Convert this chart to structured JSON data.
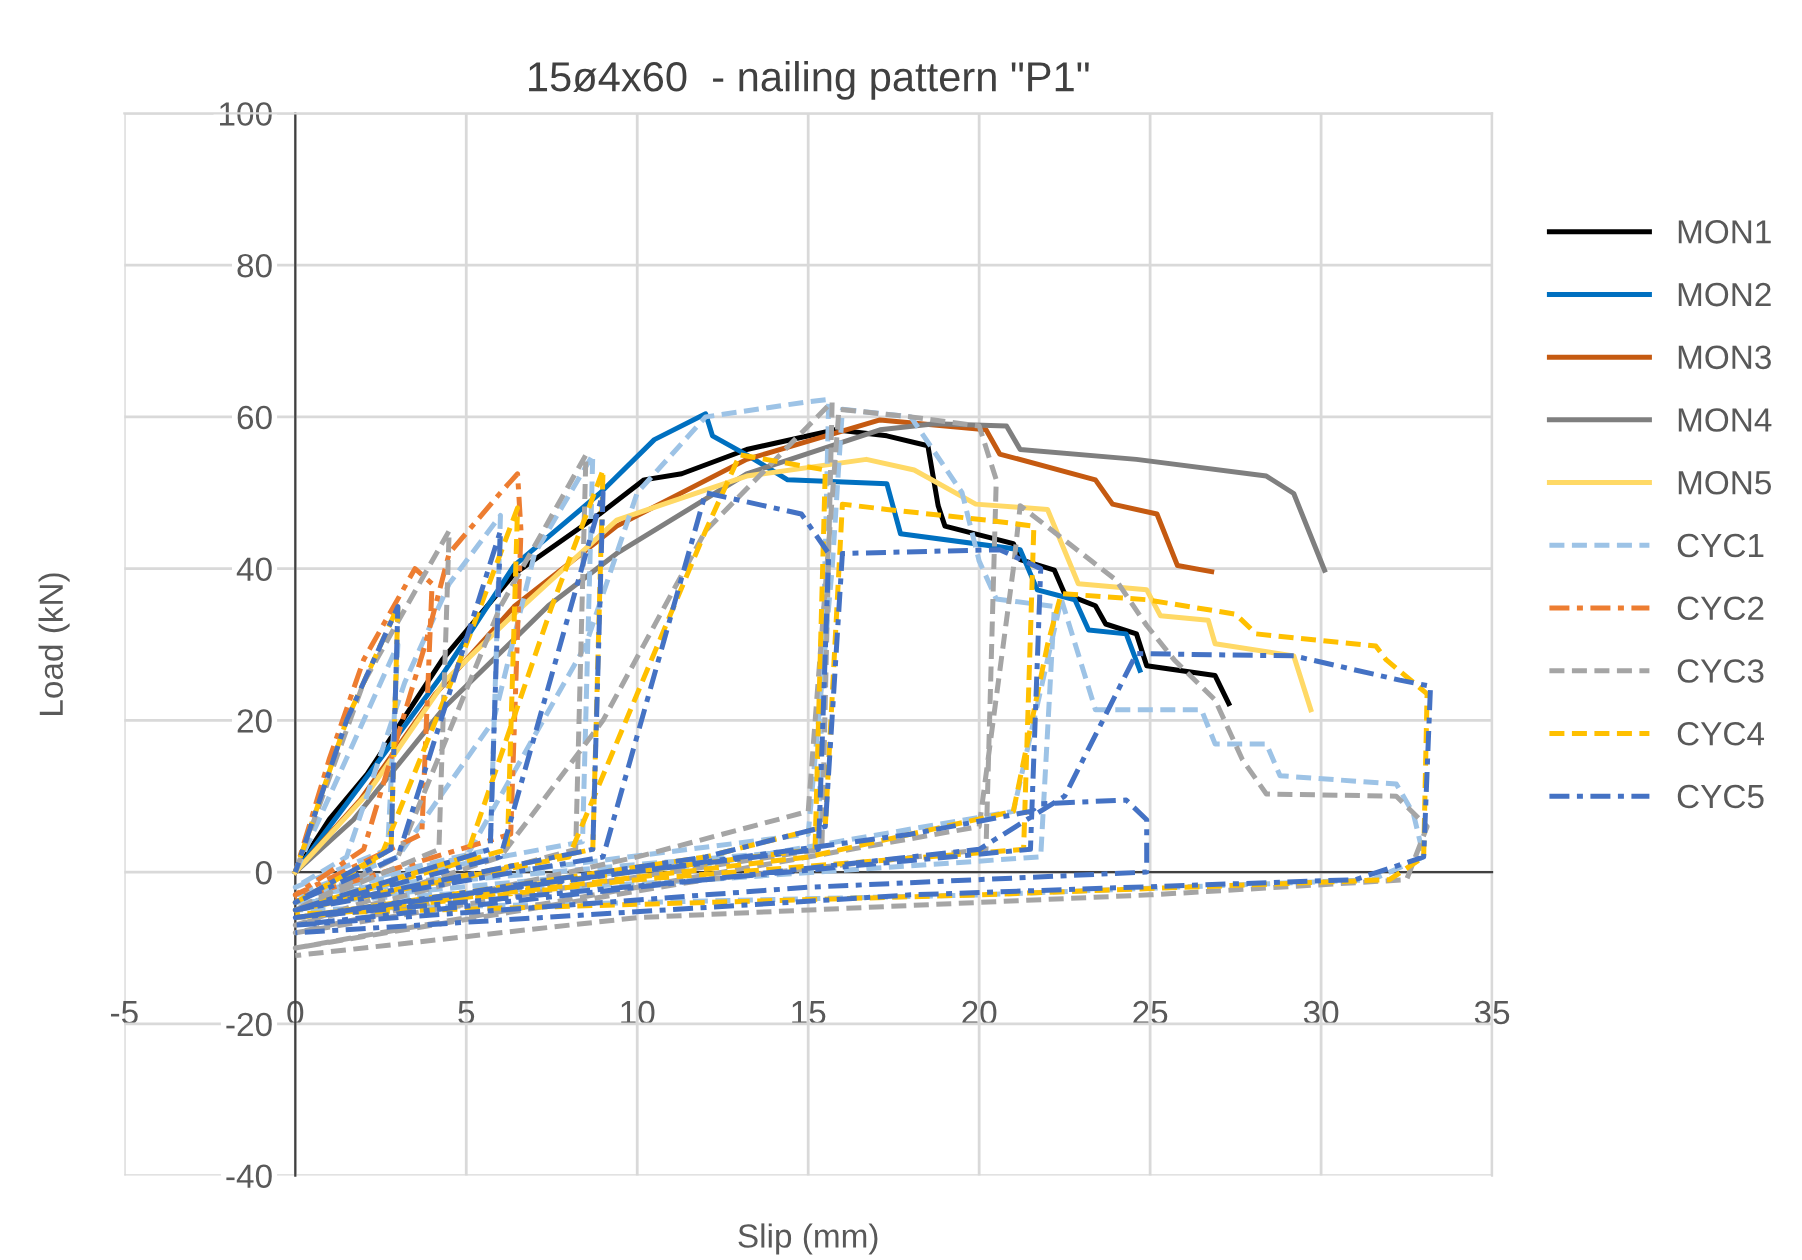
{
  "chart_data": {
    "type": "line",
    "title": "15ø4x60  - nailing pattern \"P1\"",
    "xlabel": "Slip (mm)",
    "ylabel": "Load (kN)",
    "xlim": [
      -5,
      35
    ],
    "xticks": [
      -5,
      0,
      5,
      10,
      15,
      20,
      25,
      30,
      35
    ],
    "ylim": [
      -40,
      100
    ],
    "yticks": [
      -40,
      -20,
      0,
      20,
      40,
      60,
      80,
      100
    ],
    "grid": true,
    "legend": "right",
    "marker": "none",
    "series": [
      {
        "name": "MON1",
        "color": "#000000",
        "line_style": "solid",
        "x": [
          0,
          1,
          2.1,
          4.3,
          6.4,
          8.9,
          10.2,
          11.3,
          13.2,
          15.8,
          17.3,
          18.5,
          18.8,
          19,
          21,
          21.2,
          22.2,
          22.5,
          23.4,
          23.7,
          24.6,
          24.9,
          26.9,
          27.3
        ],
        "values": [
          0,
          7,
          12.9,
          28,
          39.3,
          47.2,
          51.7,
          52.5,
          55.7,
          58.3,
          57.5,
          56.2,
          48.3,
          45.6,
          43.3,
          41.2,
          39.8,
          36.7,
          35.1,
          32.7,
          31.4,
          27.2,
          25.9,
          22.2
        ]
      },
      {
        "name": "MON2",
        "color": "#0070c0",
        "line_style": "solid",
        "x": [
          0,
          1,
          2.5,
          4.3,
          6.4,
          8.9,
          10.5,
          12,
          12.2,
          13.2,
          14.4,
          17.3,
          17.7,
          21.2,
          21.7,
          22.8,
          23.2,
          24.3,
          24.7
        ],
        "values": [
          0,
          6,
          15,
          26,
          40.4,
          49.9,
          57,
          60.4,
          57.5,
          55,
          51.7,
          51.2,
          44.6,
          42.5,
          37.2,
          35.9,
          31.9,
          31.4,
          26.6
        ]
      },
      {
        "name": "MON3",
        "color": "#c55a11",
        "line_style": "solid",
        "x": [
          0,
          1.9,
          4.1,
          6.4,
          9.4,
          13.2,
          17.1,
          20.2,
          20.6,
          23.4,
          23.9,
          25.2,
          25.8,
          26.8
        ],
        "values": [
          0,
          9.5,
          23.5,
          35,
          45.6,
          54.4,
          59.6,
          58.3,
          55.1,
          51.7,
          48.5,
          47.2,
          40.4,
          39.6
        ]
      },
      {
        "name": "MON4",
        "color": "#7f7f7f",
        "line_style": "solid",
        "x": [
          0,
          1.7,
          4.4,
          7.4,
          9.4,
          13.2,
          17.1,
          18.7,
          20.8,
          21.2,
          24.6,
          28.4,
          29.2,
          30.1
        ],
        "values": [
          0,
          6.9,
          21.9,
          35.1,
          42,
          52.5,
          58.3,
          59.1,
          58.8,
          55.7,
          54.4,
          52.2,
          49.9,
          39.8
        ]
      },
      {
        "name": "MON5",
        "color": "#ffd966",
        "line_style": "solid",
        "x": [
          0,
          2.1,
          4.4,
          6.4,
          9.4,
          13.2,
          16.7,
          18.1,
          19.9,
          22,
          22.9,
          24.9,
          25.3,
          26.7,
          26.9,
          29.2,
          29.7
        ],
        "values": [
          0,
          10.3,
          25.3,
          34,
          46.4,
          52.2,
          54.4,
          53,
          48.5,
          47.8,
          38,
          37.2,
          33.8,
          33.2,
          30.1,
          28.5,
          21.4
        ]
      },
      {
        "name": "CYC1",
        "color": "#9dc3e6",
        "line_style": "dashed",
        "x": [
          0,
          1.5,
          3,
          2.7,
          0,
          1.5,
          3.2,
          4.5,
          6,
          5.7,
          0,
          3,
          5.8,
          7,
          8.7,
          8.4,
          0,
          5,
          8.5,
          10,
          12,
          15,
          15.6,
          15.3,
          10,
          0,
          8,
          15,
          15.7,
          16,
          18,
          19.5,
          20,
          20.5,
          22.2,
          21.8,
          12,
          0,
          12,
          21,
          22.4,
          23.4,
          26.5,
          26.9,
          28.4,
          28.8,
          32.2,
          32.7,
          33,
          31.5,
          20,
          0
        ],
        "values": [
          0,
          15,
          30,
          3,
          -2,
          2,
          25,
          38,
          47,
          3,
          -3,
          2,
          20,
          42,
          55,
          4,
          -3,
          2,
          30,
          50,
          60,
          62,
          62.3,
          3,
          1,
          -3,
          1,
          5,
          40,
          61,
          60,
          50,
          41,
          36,
          35,
          2,
          -1,
          -4,
          1,
          8,
          36,
          21.4,
          21.4,
          16.9,
          16.9,
          12.7,
          11.6,
          7.7,
          2,
          -1,
          -3,
          -5
        ]
      },
      {
        "name": "CYC2",
        "color": "#ed7d31",
        "line_style": "dashdot",
        "x": [
          0,
          1,
          2,
          3.5,
          4,
          3.7,
          0,
          2,
          3.8,
          4.5,
          6,
          6.5,
          6.6,
          6.3,
          0
        ],
        "values": [
          0,
          15,
          28,
          40,
          38,
          5,
          -3,
          3,
          30,
          42,
          50,
          52.5,
          45,
          5,
          -3.5
        ]
      },
      {
        "name": "CYC3",
        "color": "#a5a5a5",
        "line_style": "dashed",
        "x": [
          0,
          2,
          4.5,
          4.2,
          0,
          3,
          6,
          8.5,
          8.2,
          0,
          6,
          9,
          12,
          15.7,
          15.4,
          8,
          0,
          10,
          15,
          15.9,
          18,
          20,
          20.5,
          20.2,
          12,
          0,
          15,
          20,
          21,
          21.2,
          23,
          24,
          24.9,
          25.7,
          26.9,
          27.7,
          28.4,
          32.2,
          33.1,
          32.5,
          25,
          10,
          0
        ],
        "values": [
          0,
          25,
          45,
          3,
          -5,
          2,
          35,
          55,
          3,
          -7,
          2,
          20,
          45,
          62,
          3,
          -2,
          -8,
          2,
          8,
          61,
          60,
          58.8,
          51.7,
          3,
          -1,
          -10,
          2,
          6,
          40,
          48.3,
          42,
          38.5,
          32.5,
          28,
          22.7,
          14.8,
          10.3,
          10,
          6,
          -1,
          -3,
          -6,
          -11
        ]
      },
      {
        "name": "CYC4",
        "color": "#ffc000",
        "line_style": "dashed",
        "x": [
          0,
          1.5,
          3,
          2.8,
          0,
          2.5,
          5,
          6.5,
          6.2,
          0,
          5,
          7.5,
          9,
          8.7,
          0,
          8,
          12,
          13,
          15.5,
          15.2,
          8,
          0,
          12,
          15.5,
          16,
          17.3,
          20.2,
          21.6,
          21.3,
          10,
          0,
          15,
          21,
          22,
          22.4,
          24.9,
          27.5,
          28.1,
          31.6,
          31.9,
          33.1,
          33,
          32,
          20,
          0
        ],
        "values": [
          0,
          20,
          35,
          3,
          -4,
          2,
          30,
          48,
          3,
          -5,
          2,
          35,
          53,
          3,
          -5,
          2,
          45,
          55,
          53,
          3,
          -1,
          -6,
          2,
          6,
          48.5,
          47.8,
          46.4,
          45.6,
          3,
          -1,
          -6,
          2,
          8,
          30,
          36.7,
          35.9,
          34,
          31.4,
          29.8,
          28,
          23.5,
          2,
          -1,
          -3,
          -5.5
        ]
      },
      {
        "name": "CYC5",
        "color": "#4472c4",
        "line_style": "dashdot",
        "x": [
          0,
          1.5,
          3,
          2.8,
          0,
          3,
          6,
          5.7,
          0,
          6,
          9,
          8.7,
          0,
          9,
          12,
          14.8,
          15.6,
          15.3,
          8,
          0,
          12,
          15.5,
          16,
          20.6,
          21.8,
          21.5,
          12,
          0,
          18,
          21.5,
          21.8,
          24.3,
          24.9,
          24.9,
          15,
          0,
          20,
          22.5,
          24.6,
          29.2,
          32.3,
          33.2,
          33,
          31,
          18,
          0
        ],
        "values": [
          0,
          20,
          35,
          3,
          -4,
          2,
          45,
          3,
          -5,
          2,
          50,
          3,
          -5,
          2,
          50,
          47.2,
          42,
          3,
          -1,
          -6,
          2,
          6,
          42,
          42.5,
          40,
          3,
          -1,
          -6,
          5,
          8,
          9,
          9.5,
          6.9,
          0,
          -2,
          -7,
          3,
          10,
          28.8,
          28.5,
          25.3,
          24.5,
          2,
          -1,
          -3,
          -8
        ]
      }
    ]
  }
}
